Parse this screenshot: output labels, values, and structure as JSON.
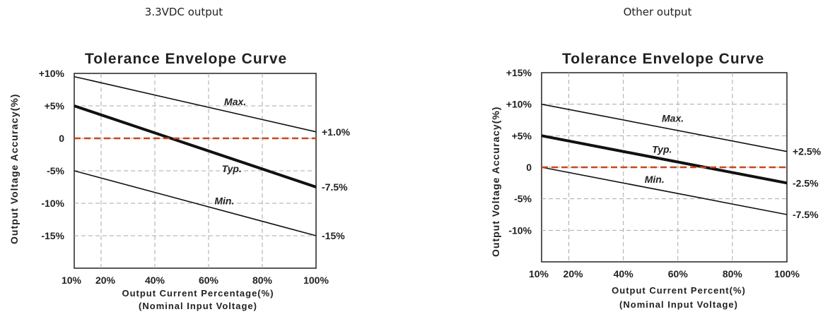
{
  "captions": [
    "3.3VDC output",
    "Other output"
  ],
  "chart_data": [
    {
      "type": "line",
      "caption": "3.3VDC output",
      "title": "Tolerance Envelope Curve",
      "xlabel": "Output Current Percentage(%)",
      "xnote": "(Nominal Input Voltage)",
      "ylabel": "Output Voltage Accuracy(%)",
      "xlim": [
        10,
        100
      ],
      "ylim": [
        -20,
        10
      ],
      "xticks": [
        {
          "value": 10,
          "label": "10%"
        },
        {
          "value": 20,
          "label": "20%"
        },
        {
          "value": 40,
          "label": "40%"
        },
        {
          "value": 60,
          "label": "60%"
        },
        {
          "value": 80,
          "label": "80%"
        },
        {
          "value": 100,
          "label": "100%"
        }
      ],
      "yticks": [
        {
          "value": 10,
          "label": "+10%"
        },
        {
          "value": 5,
          "label": "+5%"
        },
        {
          "value": 0,
          "label": "0"
        },
        {
          "value": -5,
          "label": "-5%"
        },
        {
          "value": -10,
          "label": "-10%"
        },
        {
          "value": -15,
          "label": "-15%"
        }
      ],
      "grid": true,
      "reference_line": {
        "y": 0,
        "color": "#c8461f",
        "style": "dashed"
      },
      "series": [
        {
          "name": "Max.",
          "x": [
            10,
            100
          ],
          "y": [
            9.5,
            1.0
          ],
          "end_label": "+1.0%",
          "weight": "thin"
        },
        {
          "name": "Typ.",
          "x": [
            10,
            100
          ],
          "y": [
            5,
            -7.5
          ],
          "end_label": "-7.5%",
          "weight": "bold"
        },
        {
          "name": "Min.",
          "x": [
            10,
            100
          ],
          "y": [
            -5,
            -15
          ],
          "end_label": "-15%",
          "weight": "thin"
        }
      ]
    },
    {
      "type": "line",
      "caption": "Other output",
      "title": "Tolerance Envelope Curve",
      "xlabel": "Output Current Percent(%)",
      "xnote": "(Nominal Input Voltage)",
      "ylabel": "Output Voltage Accuracy(%)",
      "xlim": [
        10,
        100
      ],
      "ylim": [
        -15,
        15
      ],
      "xticks": [
        {
          "value": 10,
          "label": "10%"
        },
        {
          "value": 20,
          "label": "20%"
        },
        {
          "value": 40,
          "label": "40%"
        },
        {
          "value": 60,
          "label": "60%"
        },
        {
          "value": 80,
          "label": "80%"
        },
        {
          "value": 100,
          "label": "100%"
        }
      ],
      "yticks": [
        {
          "value": 15,
          "label": "+15%"
        },
        {
          "value": 10,
          "label": "+10%"
        },
        {
          "value": 5,
          "label": "+5%"
        },
        {
          "value": 0,
          "label": "0"
        },
        {
          "value": -5,
          "label": "-5%"
        },
        {
          "value": -10,
          "label": "-10%"
        }
      ],
      "grid": true,
      "reference_line": {
        "y": 0,
        "color": "#c8461f",
        "style": "dashed"
      },
      "series": [
        {
          "name": "Max.",
          "x": [
            10,
            100
          ],
          "y": [
            10,
            2.5
          ],
          "end_label": "+2.5%",
          "weight": "thin"
        },
        {
          "name": "Typ.",
          "x": [
            10,
            100
          ],
          "y": [
            5,
            -2.5
          ],
          "end_label": "-2.5%",
          "weight": "bold"
        },
        {
          "name": "Min.",
          "x": [
            10,
            100
          ],
          "y": [
            0,
            -7.5
          ],
          "end_label": "-7.5%",
          "weight": "thin"
        }
      ]
    }
  ]
}
